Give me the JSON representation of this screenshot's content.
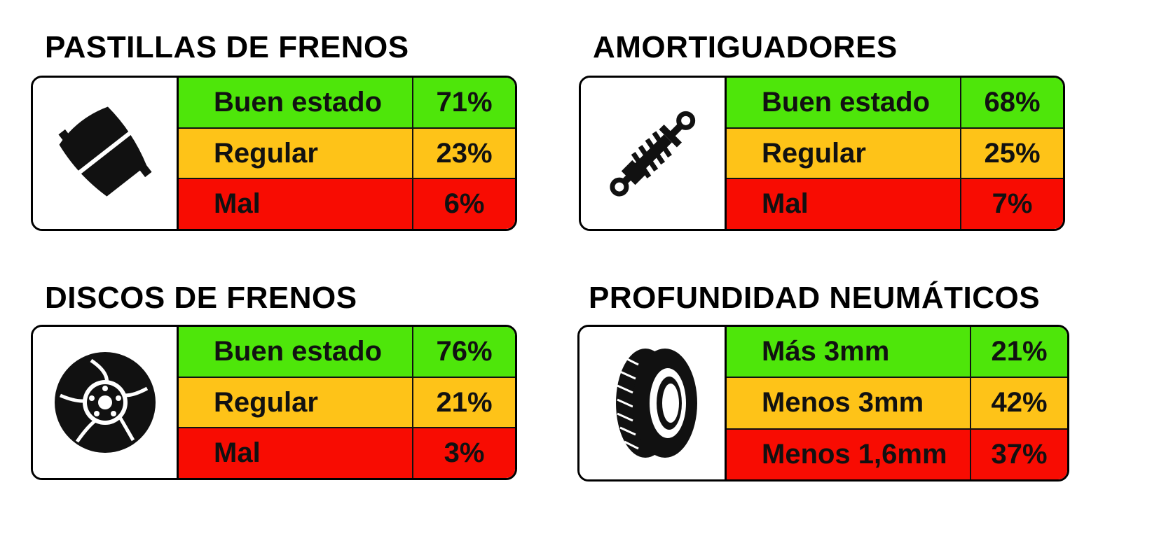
{
  "panels": [
    {
      "title": "PASTILLAS DE FRENOS",
      "icon": "brake-pad-icon",
      "rows": [
        {
          "label": "Buen estado",
          "value": "71%"
        },
        {
          "label": "Regular",
          "value": "23%"
        },
        {
          "label": "Mal",
          "value": "6%"
        }
      ]
    },
    {
      "title": "AMORTIGUADORES",
      "icon": "shock-absorber-icon",
      "rows": [
        {
          "label": "Buen estado",
          "value": "68%"
        },
        {
          "label": "Regular",
          "value": "25%"
        },
        {
          "label": "Mal",
          "value": "7%"
        }
      ]
    },
    {
      "title": "DISCOS DE FRENOS",
      "icon": "brake-disc-icon",
      "rows": [
        {
          "label": "Buen estado",
          "value": "76%"
        },
        {
          "label": "Regular",
          "value": "21%"
        },
        {
          "label": "Mal",
          "value": "3%"
        }
      ]
    },
    {
      "title": "PROFUNDIDAD NEUMÁTICOS",
      "icon": "tire-icon",
      "rows": [
        {
          "label": "Más 3mm",
          "value": "21%"
        },
        {
          "label": "Menos 3mm",
          "value": "42%"
        },
        {
          "label": "Menos 1,6mm",
          "value": "37%"
        }
      ]
    }
  ],
  "colors": {
    "good": "#4ee60a",
    "fair": "#fec318",
    "bad": "#f80c02"
  }
}
